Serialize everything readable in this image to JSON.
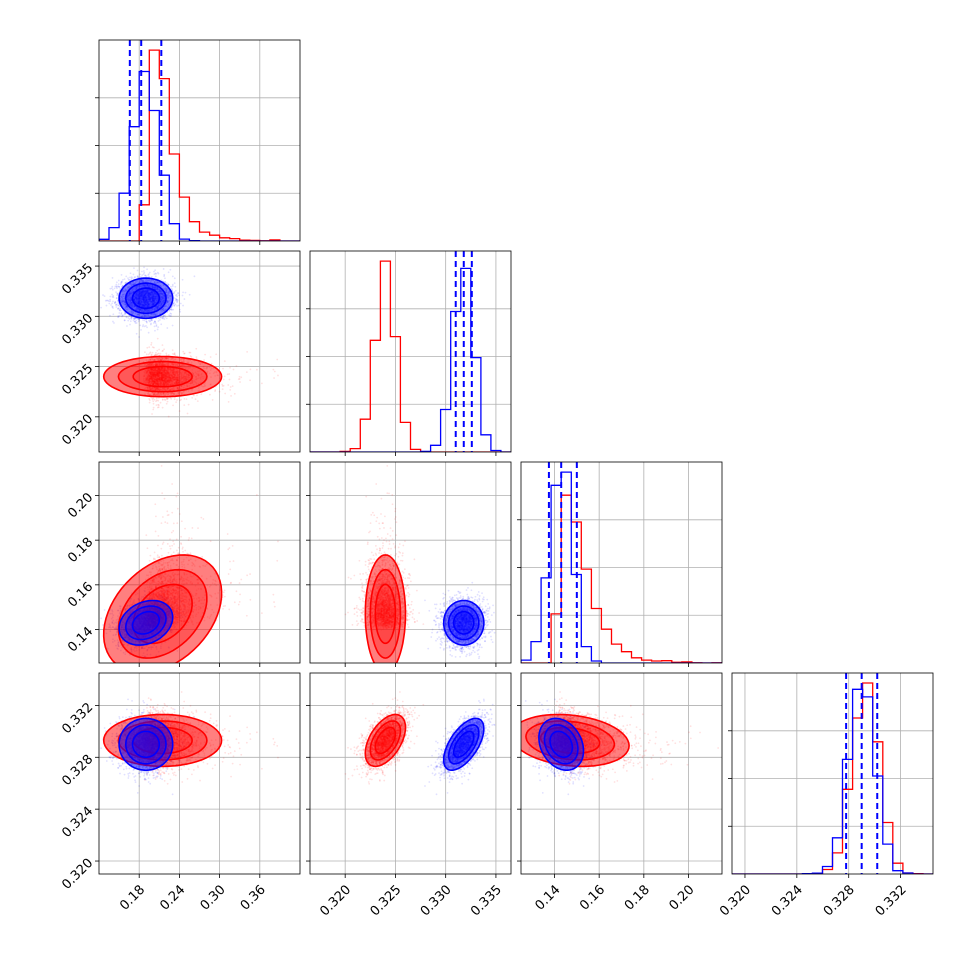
{
  "chart_data": {
    "type": "corner",
    "colors": {
      "blue": "#0000ff",
      "red": "#ff0000"
    },
    "params": [
      {
        "range": [
          0.12,
          0.42
        ],
        "ticks": [
          0.18,
          0.24,
          0.3,
          0.36
        ],
        "tick_labels": [
          "0.18",
          "0.24",
          "0.30",
          "0.36"
        ]
      },
      {
        "range": [
          0.3165,
          0.3365
        ],
        "ticks": [
          0.32,
          0.325,
          0.33,
          0.335
        ],
        "tick_labels": [
          "0.320",
          "0.325",
          "0.330",
          "0.335"
        ]
      },
      {
        "range": [
          0.125,
          0.215
        ],
        "ticks": [
          0.14,
          0.16,
          0.18,
          0.2
        ],
        "tick_labels": [
          "0.14",
          "0.16",
          "0.18",
          "0.20"
        ]
      },
      {
        "range": [
          0.319,
          0.3345
        ],
        "ticks": [
          0.32,
          0.324,
          0.328,
          0.332
        ],
        "tick_labels": [
          "0.320",
          "0.324",
          "0.328",
          "0.332"
        ]
      }
    ],
    "series": [
      {
        "color": "blue",
        "mean": [
          0.19,
          0.3318,
          0.143,
          0.329
        ],
        "sd": [
          0.02,
          0.001,
          0.005,
          0.001
        ],
        "quantiles": [
          [
            0.166,
            0.183,
            0.213
          ],
          [
            0.331,
            0.3318,
            0.3326
          ],
          [
            0.1375,
            0.143,
            0.15
          ],
          [
            0.3278,
            0.329,
            0.3302
          ]
        ]
      },
      {
        "color": "red",
        "mean": [
          0.21,
          0.324,
          0.15,
          0.3293
        ],
        "sd": [
          0.04,
          0.001,
          0.012,
          0.001
        ]
      }
    ],
    "correlations": [
      {
        "pair": [
          0,
          2
        ],
        "blue": 0.25,
        "red": 0.35
      },
      {
        "pair": [
          1,
          3
        ],
        "blue": 0.6,
        "red": 0.5
      },
      {
        "pair": [
          2,
          3
        ],
        "blue": -0.25,
        "red": -0.2
      }
    ]
  }
}
